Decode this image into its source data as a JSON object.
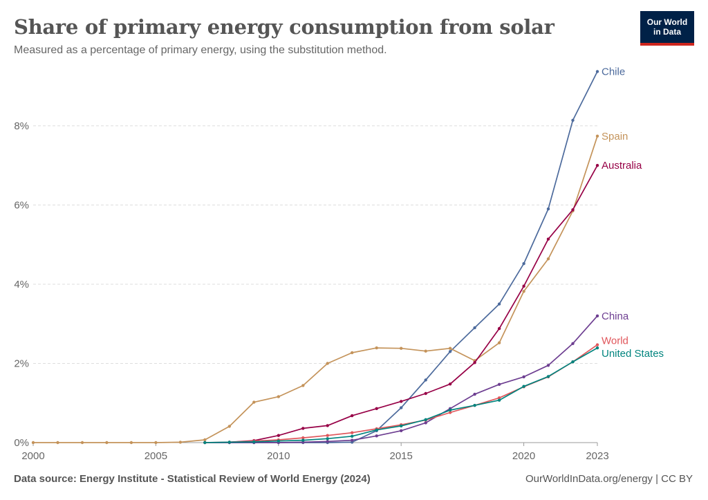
{
  "header": {
    "title": "Share of primary energy consumption from solar",
    "subtitle": "Measured as a percentage of primary energy, using the substitution method."
  },
  "logo": {
    "line1": "Our World",
    "line2": "in Data"
  },
  "footer": {
    "source_label": "Data source:",
    "source_text": "Energy Institute - Statistical Review of World Energy (2024)",
    "credit": "OurWorldInData.org/energy | CC BY"
  },
  "colors": {
    "Chile": "#4c6a9c",
    "Spain": "#c4935a",
    "Australia": "#970046",
    "China": "#6d3e91",
    "World": "#e0565b",
    "United States": "#00847e"
  },
  "chart_data": {
    "type": "line",
    "title": "Share of primary energy consumption from solar",
    "subtitle": "Measured as a percentage of primary energy, using the substitution method.",
    "xlabel": "",
    "ylabel": "",
    "xlim": [
      2000,
      2023
    ],
    "ylim": [
      0,
      9.5
    ],
    "yticks": [
      0,
      2,
      4,
      6,
      8
    ],
    "ytick_labels": [
      "0%",
      "2%",
      "4%",
      "6%",
      "8%"
    ],
    "xticks": [
      2000,
      2005,
      2010,
      2015,
      2020,
      2023
    ],
    "xtick_labels": [
      "2000",
      "2005",
      "2010",
      "2015",
      "2020",
      "2023"
    ],
    "grid": true,
    "series": [
      {
        "name": "Chile",
        "x": [
          2007,
          2008,
          2009,
          2010,
          2011,
          2012,
          2013,
          2014,
          2015,
          2016,
          2017,
          2018,
          2019,
          2020,
          2021,
          2022,
          2023
        ],
        "values": [
          0,
          0,
          0,
          0,
          0,
          0,
          0.01,
          0.3,
          0.88,
          1.58,
          2.3,
          2.9,
          3.5,
          4.52,
          5.9,
          8.14,
          9.37
        ]
      },
      {
        "name": "Spain",
        "x": [
          2000,
          2001,
          2002,
          2003,
          2004,
          2005,
          2006,
          2007,
          2008,
          2009,
          2010,
          2011,
          2012,
          2013,
          2014,
          2015,
          2016,
          2017,
          2018,
          2019,
          2020,
          2021,
          2022,
          2023
        ],
        "values": [
          0,
          0,
          0,
          0,
          0,
          0,
          0.01,
          0.07,
          0.41,
          1.02,
          1.16,
          1.44,
          2.0,
          2.27,
          2.39,
          2.38,
          2.31,
          2.38,
          2.07,
          2.52,
          3.82,
          4.64,
          5.85,
          7.74
        ]
      },
      {
        "name": "Australia",
        "x": [
          2008,
          2009,
          2010,
          2011,
          2012,
          2013,
          2014,
          2015,
          2016,
          2017,
          2018,
          2019,
          2020,
          2021,
          2022,
          2023
        ],
        "values": [
          0.01,
          0.05,
          0.18,
          0.36,
          0.43,
          0.68,
          0.86,
          1.04,
          1.24,
          1.48,
          2.02,
          2.88,
          3.95,
          5.14,
          5.88,
          7.0
        ]
      },
      {
        "name": "China",
        "x": [
          2007,
          2008,
          2009,
          2010,
          2011,
          2012,
          2013,
          2014,
          2015,
          2016,
          2017,
          2018,
          2019,
          2020,
          2021,
          2022,
          2023
        ],
        "values": [
          0,
          0,
          0,
          0,
          0.01,
          0.03,
          0.06,
          0.17,
          0.3,
          0.5,
          0.86,
          1.22,
          1.47,
          1.66,
          1.95,
          2.5,
          3.2
        ]
      },
      {
        "name": "World",
        "x": [
          2007,
          2008,
          2009,
          2010,
          2011,
          2012,
          2013,
          2014,
          2015,
          2016,
          2017,
          2018,
          2019,
          2020,
          2021,
          2022,
          2023
        ],
        "values": [
          0,
          0.01,
          0.04,
          0.07,
          0.12,
          0.18,
          0.25,
          0.35,
          0.45,
          0.57,
          0.76,
          0.94,
          1.13,
          1.41,
          1.66,
          2.04,
          2.47
        ]
      },
      {
        "name": "United States",
        "x": [
          2007,
          2008,
          2009,
          2010,
          2011,
          2012,
          2013,
          2014,
          2015,
          2016,
          2017,
          2018,
          2019,
          2020,
          2021,
          2022,
          2023
        ],
        "values": [
          0,
          0.01,
          0.02,
          0.04,
          0.06,
          0.1,
          0.16,
          0.32,
          0.42,
          0.58,
          0.82,
          0.94,
          1.07,
          1.42,
          1.67,
          2.04,
          2.39
        ]
      }
    ]
  }
}
